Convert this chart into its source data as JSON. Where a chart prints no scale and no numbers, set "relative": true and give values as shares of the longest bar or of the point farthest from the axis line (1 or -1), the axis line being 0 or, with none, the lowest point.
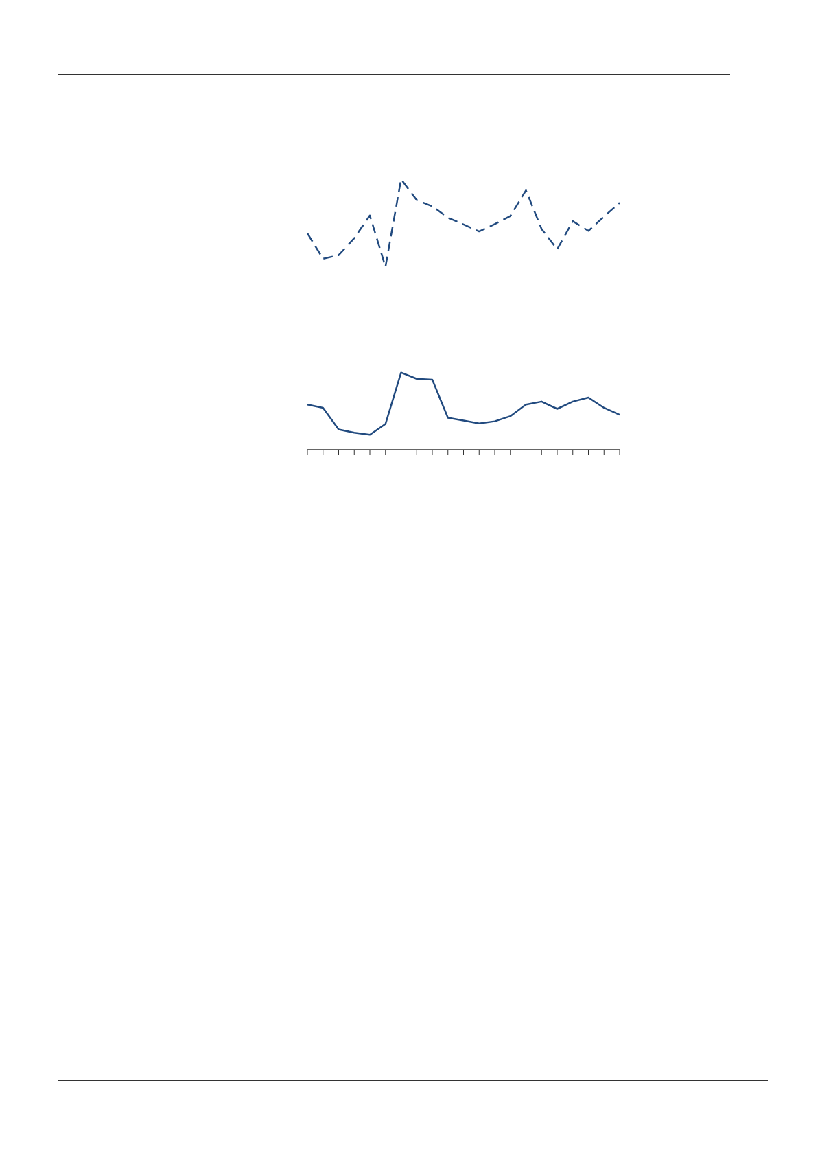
{
  "chart_data": {
    "type": "line",
    "relative": true,
    "marker": "none",
    "categories": [
      null,
      null,
      null,
      null,
      null,
      null,
      null,
      null,
      null,
      null,
      null,
      null,
      null,
      null,
      null,
      null,
      null,
      null,
      null,
      null,
      null
    ],
    "series": [
      {
        "color": "#214a7f",
        "line_style": "dashed",
        "values": [
          0.8,
          0.706,
          0.719,
          0.782,
          0.866,
          0.676,
          1.0,
          0.923,
          0.9,
          0.858,
          0.833,
          0.807,
          0.834,
          0.864,
          0.959,
          0.816,
          0.741,
          0.845,
          0.809,
          0.862,
          0.913
        ]
      },
      {
        "color": "#214a7f",
        "line_style": "solid",
        "values": [
          0.167,
          0.155,
          0.075,
          0.063,
          0.055,
          0.095,
          0.285,
          0.262,
          0.259,
          0.118,
          0.108,
          0.097,
          0.105,
          0.124,
          0.167,
          0.178,
          0.151,
          0.178,
          0.193,
          0.155,
          0.129
        ]
      }
    ]
  }
}
